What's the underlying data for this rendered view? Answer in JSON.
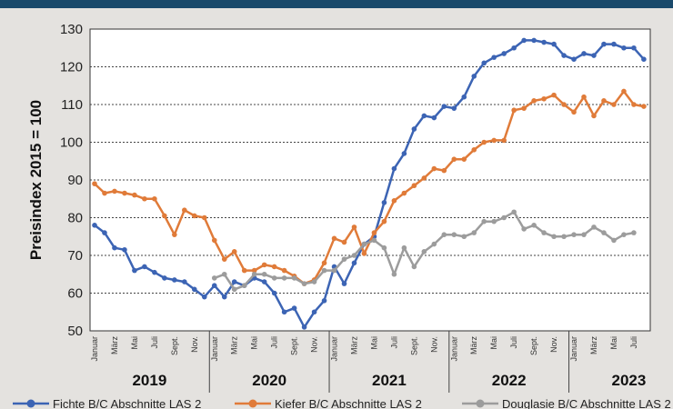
{
  "chart_data": {
    "type": "line",
    "ylabel": "Preisindex 2015 = 100",
    "ylim": [
      50,
      130
    ],
    "yticks": [
      50,
      60,
      70,
      80,
      90,
      100,
      110,
      120,
      130
    ],
    "month_labels": [
      "Januar",
      "März",
      "Mai",
      "Juli",
      "Sept.",
      "Nov.",
      "Januar",
      "März",
      "Mai",
      "Juli",
      "Sept.",
      "Nov.",
      "Januar",
      "März",
      "Mai",
      "Juli",
      "Sept.",
      "Nov.",
      "Januar",
      "März",
      "Mai",
      "Juli",
      "Sept.",
      "Nov.",
      "Januar",
      "März",
      "Mai",
      "Juli"
    ],
    "years": [
      "2019",
      "2020",
      "2021",
      "2022",
      "2023"
    ],
    "grid": true,
    "legend_position": "bottom",
    "series": [
      {
        "name": "Fichte B/C Abschnitte LAS 2",
        "color": "#3c64b4",
        "values": [
          78,
          76,
          72,
          71.5,
          66,
          67,
          65.5,
          64,
          63.5,
          63,
          61,
          59,
          62,
          59,
          63,
          62,
          64,
          63,
          60,
          55,
          56,
          51,
          55,
          58,
          67,
          62.5,
          68,
          73,
          75,
          84,
          93,
          97,
          103.5,
          107,
          106.5,
          109.5,
          109,
          112,
          117.5,
          121,
          122.5,
          123.5,
          125,
          127,
          127,
          126.5,
          126,
          123,
          122,
          123.5,
          123,
          126,
          126,
          125,
          125,
          122
        ]
      },
      {
        "name": "Kiefer B/C Abschnitte LAS 2",
        "color": "#e07b39",
        "values": [
          89,
          86.5,
          87,
          86.5,
          86,
          85,
          85,
          80.5,
          75.5,
          82,
          80.5,
          80,
          74,
          69,
          71,
          66,
          66,
          67.5,
          67,
          66,
          64.5,
          62.5,
          63.5,
          68,
          74.5,
          73.5,
          77.5,
          70.5,
          76,
          79,
          84.5,
          86.5,
          88.5,
          90.5,
          93,
          92.5,
          95.5,
          95.5,
          98,
          100,
          100.5,
          100.5,
          108.5,
          109,
          111,
          111.5,
          112.5,
          110,
          108,
          112,
          107,
          111,
          110,
          113.5,
          110,
          109.5
        ]
      },
      {
        "name": "Douglasie B/C Abschnitte LAS 2",
        "color": "#9c9c9c",
        "values": [
          null,
          null,
          null,
          null,
          null,
          null,
          null,
          null,
          null,
          null,
          null,
          null,
          64,
          65,
          61,
          62,
          65,
          65,
          64,
          64,
          64,
          62.5,
          63,
          66,
          66,
          69,
          70,
          73,
          74,
          72,
          65,
          72,
          67,
          71,
          73,
          75.5,
          75.5,
          75,
          76,
          79,
          79,
          80,
          81.5,
          77,
          78,
          76,
          75,
          75,
          75.5,
          75.5,
          77.5,
          76,
          74,
          75.5,
          76,
          null
        ]
      }
    ]
  }
}
